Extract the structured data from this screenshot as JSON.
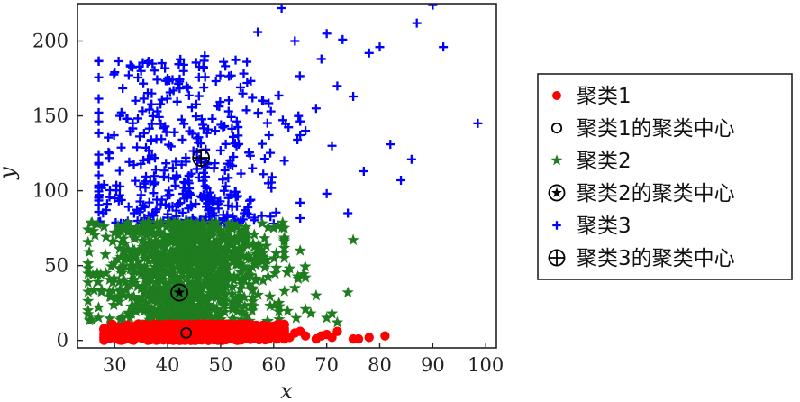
{
  "chart_data": {
    "type": "scatter",
    "title": "",
    "xlabel": "x",
    "ylabel": "y",
    "xlim": [
      23,
      102
    ],
    "ylim": [
      -5,
      225
    ],
    "xticks": [
      30,
      40,
      50,
      60,
      70,
      80,
      90,
      100
    ],
    "yticks": [
      0,
      50,
      100,
      150,
      200
    ],
    "grid": false,
    "legend_position": "right",
    "series": [
      {
        "name": "聚类1",
        "marker": "circle",
        "color": "#ff0000",
        "n_points": 900,
        "x_range": [
          28,
          82
        ],
        "y_range": [
          0,
          12
        ],
        "points": [
          [
            28.5,
            2
          ],
          [
            30,
            4
          ],
          [
            32,
            1
          ],
          [
            35,
            5
          ],
          [
            38,
            3
          ],
          [
            40,
            1
          ],
          [
            42,
            6
          ],
          [
            45,
            2
          ],
          [
            48,
            7
          ],
          [
            50,
            3
          ],
          [
            53,
            1
          ],
          [
            55,
            5
          ],
          [
            58,
            2
          ],
          [
            60,
            4
          ],
          [
            62,
            7
          ],
          [
            63,
            2
          ],
          [
            64,
            5
          ],
          [
            65,
            6
          ],
          [
            66,
            3
          ],
          [
            68,
            1
          ],
          [
            69,
            3
          ],
          [
            70,
            4
          ],
          [
            71,
            2
          ],
          [
            72,
            6
          ],
          [
            75,
            1
          ],
          [
            76,
            1
          ],
          [
            78,
            2
          ],
          [
            81,
            3
          ]
        ]
      },
      {
        "name": "聚类1的聚类中心",
        "marker": "open-circle",
        "color": "#000000",
        "points": [
          [
            43.5,
            5
          ]
        ]
      },
      {
        "name": "聚类2",
        "marker": "star",
        "color": "#1e7d1e",
        "n_points": 1000,
        "x_range": [
          25,
          76
        ],
        "y_range": [
          10,
          80
        ],
        "points": [
          [
            25,
            74
          ],
          [
            26,
            73
          ],
          [
            28,
            76
          ],
          [
            30,
            72
          ],
          [
            33,
            75
          ],
          [
            36,
            70
          ],
          [
            39,
            66
          ],
          [
            43,
            73
          ],
          [
            46,
            68
          ],
          [
            49,
            60
          ],
          [
            52,
            65
          ],
          [
            55,
            70
          ],
          [
            57,
            63
          ],
          [
            60,
            75
          ],
          [
            62,
            55
          ],
          [
            63,
            48
          ],
          [
            65,
            60
          ],
          [
            66,
            42
          ],
          [
            67,
            18
          ],
          [
            70,
            15
          ],
          [
            71,
            18
          ],
          [
            72,
            12
          ],
          [
            75,
            67
          ],
          [
            74,
            32
          ],
          [
            25,
            20
          ],
          [
            27,
            22
          ],
          [
            68,
            30
          ],
          [
            64,
            35
          ],
          [
            61,
            25
          ],
          [
            58,
            40
          ]
        ]
      },
      {
        "name": "聚类2的聚类中心",
        "marker": "circled-star",
        "color": "#000000",
        "points": [
          [
            42.2,
            32
          ]
        ]
      },
      {
        "name": "聚类3",
        "marker": "plus",
        "color": "#0000ff",
        "n_points": 450,
        "x_range": [
          27,
          99
        ],
        "y_range": [
          75,
          225
        ],
        "points": [
          [
            61.5,
            222
          ],
          [
            90,
            224
          ],
          [
            57,
            206
          ],
          [
            73,
            201
          ],
          [
            70,
            205
          ],
          [
            87,
            212
          ],
          [
            92,
            196
          ],
          [
            64,
            200
          ],
          [
            80,
            196
          ],
          [
            69,
            188
          ],
          [
            98.5,
            145
          ],
          [
            78,
            192
          ],
          [
            86,
            121
          ],
          [
            84,
            107
          ],
          [
            82,
            131
          ],
          [
            72,
            170
          ],
          [
            75,
            163
          ],
          [
            77,
            113
          ],
          [
            74,
            85
          ],
          [
            70,
            98
          ],
          [
            65,
            92
          ],
          [
            60,
            78
          ],
          [
            55,
            85
          ],
          [
            50,
            79
          ],
          [
            45,
            80
          ],
          [
            40,
            82
          ],
          [
            35,
            88
          ],
          [
            30,
            95
          ],
          [
            28,
            104
          ],
          [
            29,
            125
          ],
          [
            31,
            150
          ],
          [
            33,
            183
          ],
          [
            35,
            180
          ],
          [
            37,
            165
          ],
          [
            40,
            175
          ],
          [
            43,
            180
          ],
          [
            47,
            190
          ],
          [
            52,
            177
          ],
          [
            55,
            172
          ],
          [
            58,
            160
          ],
          [
            46,
            121
          ],
          [
            44,
            110
          ],
          [
            49,
            140
          ],
          [
            53,
            130
          ],
          [
            56,
            115
          ],
          [
            59,
            105
          ],
          [
            62,
            120
          ],
          [
            66,
            140
          ],
          [
            68,
            155
          ],
          [
            71,
            130
          ]
        ]
      },
      {
        "name": "聚类3的聚类中心",
        "marker": "circled-plus",
        "color": "#000000",
        "points": [
          [
            46.3,
            122
          ]
        ]
      }
    ]
  }
}
